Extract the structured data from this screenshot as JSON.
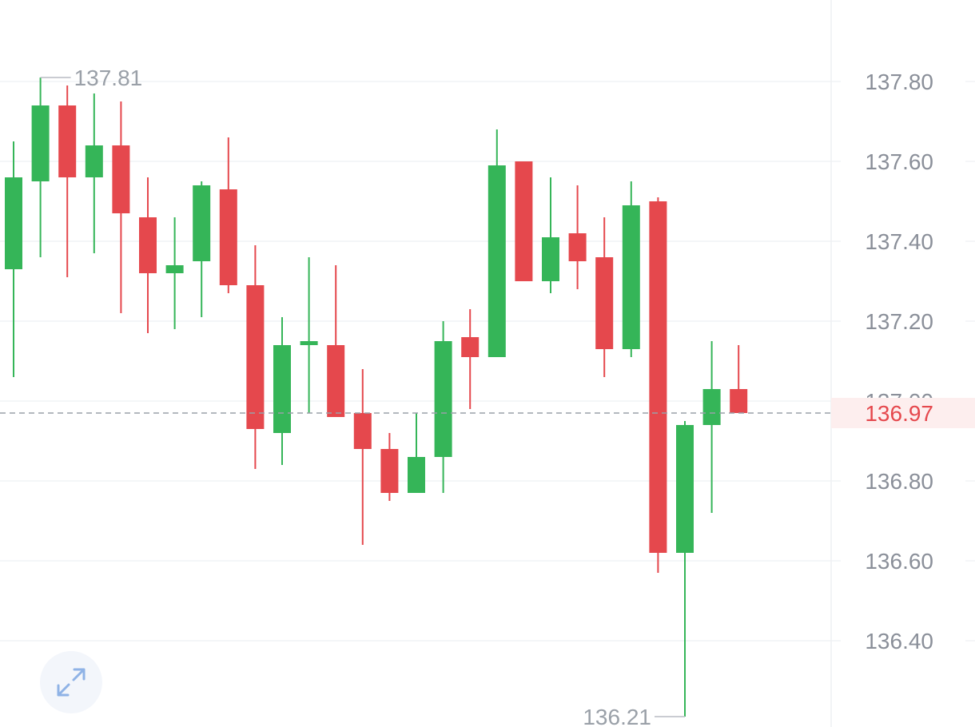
{
  "chart_data": {
    "type": "candlestick",
    "y_ticks": [
      "137.80",
      "137.60",
      "137.40",
      "137.20",
      "137.00",
      "136.80",
      "136.60",
      "136.40"
    ],
    "ylim": [
      136.19,
      137.99
    ],
    "candles": [
      {
        "o": 137.33,
        "h": 137.65,
        "l": 137.06,
        "c": 137.56
      },
      {
        "o": 137.55,
        "h": 137.81,
        "l": 137.36,
        "c": 137.74
      },
      {
        "o": 137.74,
        "h": 137.79,
        "l": 137.31,
        "c": 137.56
      },
      {
        "o": 137.56,
        "h": 137.77,
        "l": 137.37,
        "c": 137.64
      },
      {
        "o": 137.64,
        "h": 137.75,
        "l": 137.22,
        "c": 137.47
      },
      {
        "o": 137.46,
        "h": 137.56,
        "l": 137.17,
        "c": 137.32
      },
      {
        "o": 137.32,
        "h": 137.46,
        "l": 137.18,
        "c": 137.34
      },
      {
        "o": 137.35,
        "h": 137.55,
        "l": 137.21,
        "c": 137.54
      },
      {
        "o": 137.53,
        "h": 137.66,
        "l": 137.27,
        "c": 137.29
      },
      {
        "o": 137.29,
        "h": 137.39,
        "l": 136.83,
        "c": 136.93
      },
      {
        "o": 136.92,
        "h": 137.21,
        "l": 136.84,
        "c": 137.14
      },
      {
        "o": 137.14,
        "h": 137.36,
        "l": 136.97,
        "c": 137.15
      },
      {
        "o": 137.14,
        "h": 137.34,
        "l": 136.96,
        "c": 136.96
      },
      {
        "o": 136.97,
        "h": 137.08,
        "l": 136.64,
        "c": 136.88
      },
      {
        "o": 136.88,
        "h": 136.92,
        "l": 136.75,
        "c": 136.77
      },
      {
        "o": 136.77,
        "h": 136.97,
        "l": 136.77,
        "c": 136.86
      },
      {
        "o": 136.86,
        "h": 137.2,
        "l": 136.77,
        "c": 137.15
      },
      {
        "o": 137.16,
        "h": 137.23,
        "l": 136.98,
        "c": 137.11
      },
      {
        "o": 137.11,
        "h": 137.68,
        "l": 137.11,
        "c": 137.59
      },
      {
        "o": 137.6,
        "h": 137.6,
        "l": 137.3,
        "c": 137.3
      },
      {
        "o": 137.3,
        "h": 137.56,
        "l": 137.27,
        "c": 137.41
      },
      {
        "o": 137.42,
        "h": 137.54,
        "l": 137.28,
        "c": 137.35
      },
      {
        "o": 137.36,
        "h": 137.46,
        "l": 137.06,
        "c": 137.13
      },
      {
        "o": 137.13,
        "h": 137.55,
        "l": 137.11,
        "c": 137.49
      },
      {
        "o": 137.5,
        "h": 137.51,
        "l": 136.57,
        "c": 136.62
      },
      {
        "o": 136.62,
        "h": 136.95,
        "l": 136.21,
        "c": 136.94
      },
      {
        "o": 136.94,
        "h": 137.15,
        "l": 136.72,
        "c": 137.03
      },
      {
        "o": 137.03,
        "h": 137.14,
        "l": 136.97,
        "c": 136.97
      }
    ],
    "high_label": "137.81",
    "low_label": "136.21",
    "current_price": 136.97,
    "current_price_label": "136.97",
    "grid": true,
    "colors": {
      "up": "#35b558",
      "down": "#e5484d",
      "grid": "#eef0f3",
      "axis_text": "#8a8f99",
      "current_bg": "#fdeeee",
      "current_line": "#9aa0a8"
    }
  },
  "expand_button": {
    "icon": "expand-icon"
  }
}
